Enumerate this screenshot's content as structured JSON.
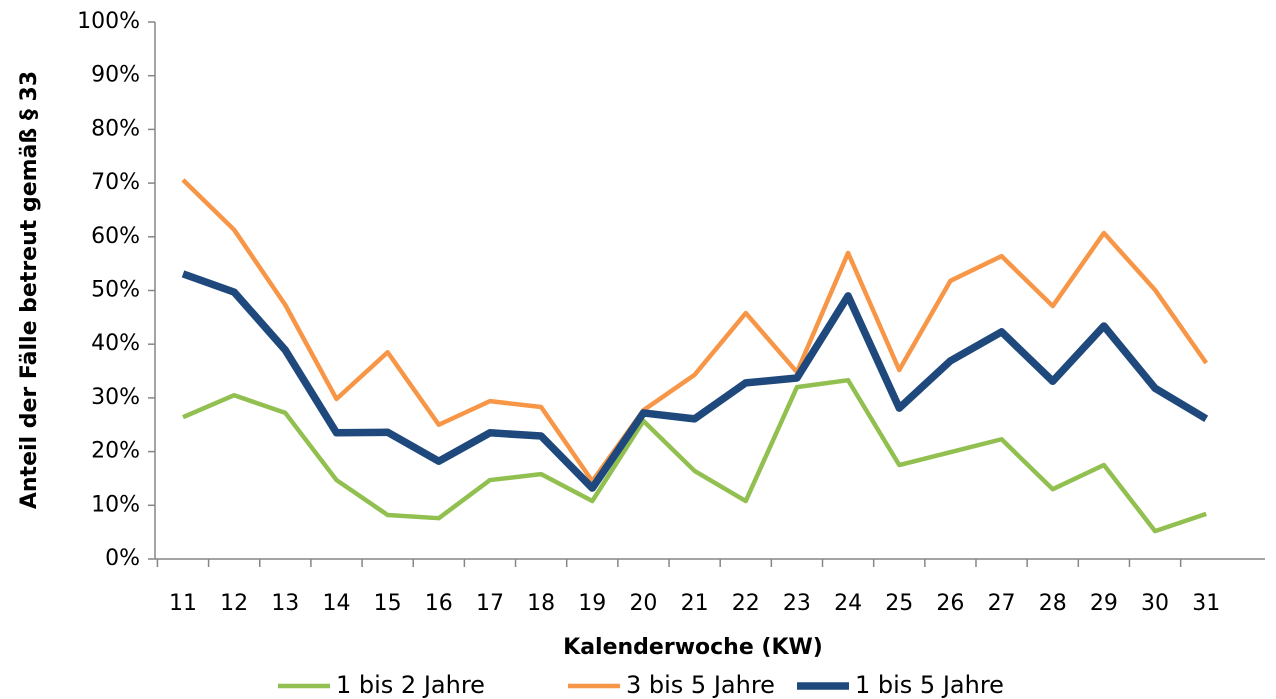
{
  "chart_data": {
    "type": "line",
    "x_label": "Kalenderwoche (KW)",
    "y_label": "Anteil der Fälle betreut gemäß § 33",
    "categories": [
      "11",
      "12",
      "13",
      "14",
      "15",
      "16",
      "17",
      "18",
      "19",
      "20",
      "21",
      "22",
      "23",
      "24",
      "25",
      "26",
      "27",
      "28",
      "29",
      "30",
      "31"
    ],
    "series": [
      {
        "name": "1 bis 2 Jahre",
        "color": "#92c050",
        "width": 4.5,
        "values": [
          26.4,
          30.5,
          27.2,
          14.7,
          8.2,
          7.6,
          14.7,
          15.8,
          10.8,
          25.7,
          16.4,
          10.8,
          32,
          33.3,
          17.5,
          19.9,
          22.3,
          13,
          17.5,
          5.2,
          8.4
        ]
      },
      {
        "name": "3 bis 5 Jahre",
        "color": "#f79646",
        "width": 4.5,
        "values": [
          70.6,
          61.3,
          47.3,
          29.8,
          38.5,
          25,
          29.4,
          28.3,
          14.5,
          27.7,
          34.3,
          45.8,
          34.8,
          57,
          35.2,
          51.8,
          56.4,
          47.1,
          60.7,
          50.1,
          36.5
        ]
      },
      {
        "name": "1 bis 5 Jahre",
        "color": "#1f497d",
        "width": 7.5,
        "values": [
          53.1,
          49.7,
          38.9,
          23.5,
          23.6,
          18.2,
          23.5,
          22.9,
          13.2,
          27.2,
          26.1,
          32.8,
          33.7,
          49,
          28.1,
          36.9,
          42.3,
          33.1,
          43.4,
          31.8,
          26.1
        ]
      }
    ],
    "ylim": [
      0,
      100
    ],
    "yticks": [
      {
        "value": 0,
        "label": "0%"
      },
      {
        "value": 10,
        "label": "10%"
      },
      {
        "value": 20,
        "label": "20%"
      },
      {
        "value": 30,
        "label": "30%"
      },
      {
        "value": 40,
        "label": "40%"
      },
      {
        "value": 50,
        "label": "50%"
      },
      {
        "value": 60,
        "label": "60%"
      },
      {
        "value": 70,
        "label": "70%"
      },
      {
        "value": 80,
        "label": "80%"
      },
      {
        "value": 90,
        "label": "90%"
      },
      {
        "value": 100,
        "label": "100%"
      }
    ],
    "grid": false,
    "legend": "bottom"
  }
}
